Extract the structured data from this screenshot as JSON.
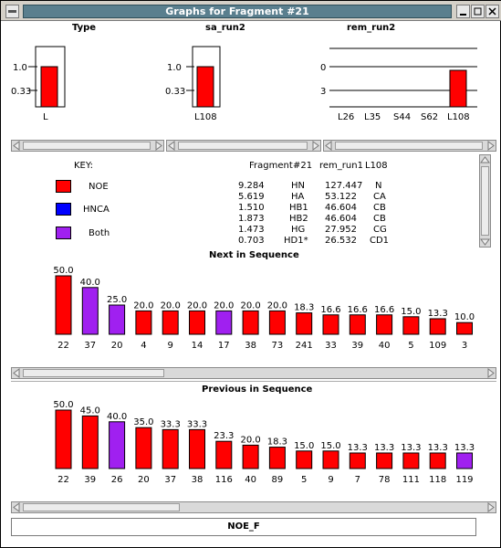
{
  "window": {
    "title": "Graphs for Fragment #21"
  },
  "top_charts": [
    {
      "title": "Type",
      "ytick_labels": [
        "1.0",
        "0.33"
      ],
      "categories": [
        "L"
      ],
      "values": [
        1.0
      ]
    },
    {
      "title": "sa_run2",
      "ytick_labels": [
        "1.0",
        "0.33"
      ],
      "categories": [
        "L108"
      ],
      "values": [
        1.0
      ]
    },
    {
      "title": "rem_run2",
      "ytick_labels": [
        "0",
        "3"
      ],
      "categories": [
        "L26",
        "L35",
        "S44",
        "S62",
        "L108"
      ],
      "values": [
        0,
        0,
        0,
        0,
        1.0
      ]
    }
  ],
  "key": {
    "heading": "KEY:",
    "items": [
      {
        "label": "NOE",
        "color": "#ff0000"
      },
      {
        "label": "HNCA",
        "color": "#0000ff"
      },
      {
        "label": "Both",
        "color": "#a020f0"
      }
    ]
  },
  "fragment_table": {
    "header": [
      "Fragment",
      "#21",
      "rem_run1",
      "L108"
    ],
    "rows": [
      [
        "9.284",
        "HN",
        "127.447",
        "N"
      ],
      [
        "5.619",
        "HA",
        "53.122",
        "CA"
      ],
      [
        "1.510",
        "HB1",
        "46.604",
        "CB"
      ],
      [
        "1.873",
        "HB2",
        "46.604",
        "CB"
      ],
      [
        "1.473",
        "HG",
        "27.952",
        "CG"
      ],
      [
        "0.703",
        "HD1*",
        "26.532",
        "CD1"
      ]
    ]
  },
  "colors": {
    "noe": "#ff0000",
    "hnca": "#0000ff",
    "both": "#a020f0"
  },
  "chart_data": [
    {
      "type": "bar",
      "title": "Next in Sequence",
      "categories": [
        "22",
        "37",
        "20",
        "4",
        "9",
        "14",
        "17",
        "38",
        "73",
        "241",
        "33",
        "39",
        "40",
        "5",
        "109",
        "3"
      ],
      "values": [
        50.0,
        40.0,
        25.0,
        20.0,
        20.0,
        20.0,
        20.0,
        20.0,
        20.0,
        18.3,
        16.6,
        16.6,
        16.6,
        15.0,
        13.3,
        10.0
      ],
      "labels": [
        "50.0",
        "40.0",
        "25.0",
        "20.0",
        "20.0",
        "20.0",
        "20.0",
        "20.0",
        "20.0",
        "18.3",
        "16.6",
        "16.6",
        "16.6",
        "15.0",
        "13.3",
        "10.0"
      ],
      "bar_types": [
        "noe",
        "both",
        "both",
        "noe",
        "noe",
        "noe",
        "both",
        "noe",
        "noe",
        "noe",
        "noe",
        "noe",
        "noe",
        "noe",
        "noe",
        "noe"
      ]
    },
    {
      "type": "bar",
      "title": "Previous in Sequence",
      "categories": [
        "22",
        "39",
        "26",
        "20",
        "37",
        "38",
        "116",
        "40",
        "89",
        "5",
        "9",
        "7",
        "78",
        "111",
        "118",
        "119"
      ],
      "values": [
        50.0,
        45.0,
        40.0,
        35.0,
        33.3,
        33.3,
        23.3,
        20.0,
        18.3,
        15.0,
        15.0,
        13.3,
        13.3,
        13.3,
        13.3,
        13.3
      ],
      "labels": [
        "50.0",
        "45.0",
        "40.0",
        "35.0",
        "33.3",
        "33.3",
        "23.3",
        "20.0",
        "18.3",
        "15.0",
        "15.0",
        "13.3",
        "13.3",
        "13.3",
        "13.3",
        "13.3"
      ],
      "bar_types": [
        "noe",
        "noe",
        "both",
        "noe",
        "noe",
        "noe",
        "noe",
        "noe",
        "noe",
        "noe",
        "noe",
        "noe",
        "noe",
        "noe",
        "noe",
        "both"
      ]
    }
  ],
  "footer": {
    "button_label": "NOE_F"
  }
}
